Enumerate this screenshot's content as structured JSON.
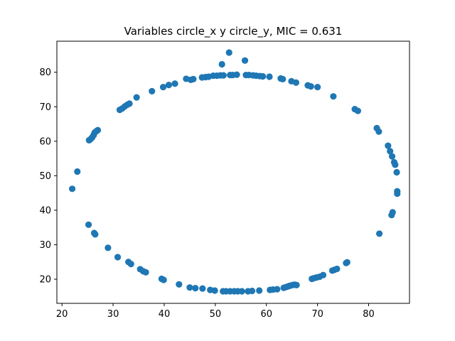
{
  "chart_data": {
    "type": "scatter",
    "title": "Variables circle_x y circle_y, MIC = 0.631",
    "xlabel": "",
    "ylabel": "",
    "xlim": [
      19,
      88
    ],
    "ylim": [
      13,
      89
    ],
    "xticks": [
      20,
      30,
      40,
      50,
      60,
      70,
      80
    ],
    "yticks": [
      20,
      30,
      40,
      50,
      60,
      70,
      80
    ],
    "grid": false,
    "marker_color": "#1f77b4",
    "series": [
      {
        "points": [
          [
            22.0,
            46.2
          ],
          [
            23.0,
            51.2
          ],
          [
            25.2,
            35.8
          ],
          [
            25.3,
            60.3
          ],
          [
            25.6,
            60.6
          ],
          [
            25.9,
            61.1
          ],
          [
            26.2,
            61.8
          ],
          [
            26.4,
            62.5
          ],
          [
            26.7,
            62.9
          ],
          [
            27.0,
            63.2
          ],
          [
            26.3,
            33.4
          ],
          [
            26.5,
            33.0
          ],
          [
            29.0,
            29.1
          ],
          [
            30.9,
            26.4
          ],
          [
            31.3,
            69.1
          ],
          [
            31.8,
            69.5
          ],
          [
            32.3,
            70.1
          ],
          [
            32.8,
            70.6
          ],
          [
            33.2,
            70.9
          ],
          [
            33.0,
            25.0
          ],
          [
            33.5,
            24.4
          ],
          [
            34.6,
            72.7
          ],
          [
            35.3,
            22.9
          ],
          [
            35.9,
            22.3
          ],
          [
            36.4,
            22.0
          ],
          [
            37.6,
            74.5
          ],
          [
            39.5,
            20.1
          ],
          [
            39.9,
            19.8
          ],
          [
            39.8,
            75.7
          ],
          [
            40.9,
            76.3
          ],
          [
            42.1,
            76.7
          ],
          [
            42.9,
            18.5
          ],
          [
            44.3,
            78.1
          ],
          [
            45.0,
            17.6
          ],
          [
            45.2,
            77.8
          ],
          [
            45.7,
            78.0
          ],
          [
            46.1,
            17.4
          ],
          [
            47.4,
            78.5
          ],
          [
            47.5,
            17.3
          ],
          [
            48.1,
            78.6
          ],
          [
            48.7,
            78.7
          ],
          [
            49.0,
            16.9
          ],
          [
            49.6,
            79.0
          ],
          [
            49.9,
            16.7
          ],
          [
            50.3,
            79.0
          ],
          [
            51.0,
            79.1
          ],
          [
            51.3,
            82.3
          ],
          [
            51.6,
            79.1
          ],
          [
            51.5,
            16.5
          ],
          [
            52.1,
            16.5
          ],
          [
            52.7,
            85.7
          ],
          [
            52.9,
            79.2
          ],
          [
            52.9,
            16.5
          ],
          [
            53.4,
            79.2
          ],
          [
            53.7,
            16.5
          ],
          [
            54.2,
            79.3
          ],
          [
            54.4,
            16.5
          ],
          [
            55.2,
            16.5
          ],
          [
            55.8,
            83.4
          ],
          [
            56.0,
            79.2
          ],
          [
            56.4,
            16.5
          ],
          [
            56.6,
            79.2
          ],
          [
            57.4,
            79.1
          ],
          [
            57.2,
            16.6
          ],
          [
            58.0,
            79.0
          ],
          [
            58.6,
            16.7
          ],
          [
            58.7,
            78.9
          ],
          [
            59.3,
            78.8
          ],
          [
            60.6,
            78.7
          ],
          [
            60.7,
            16.9
          ],
          [
            61.3,
            17.0
          ],
          [
            62.1,
            17.1
          ],
          [
            62.8,
            78.2
          ],
          [
            63.2,
            78.0
          ],
          [
            63.4,
            17.5
          ],
          [
            63.8,
            17.7
          ],
          [
            64.2,
            17.9
          ],
          [
            64.6,
            18.1
          ],
          [
            64.9,
            77.4
          ],
          [
            65.1,
            18.3
          ],
          [
            65.5,
            18.4
          ],
          [
            65.9,
            18.3
          ],
          [
            65.8,
            77.0
          ],
          [
            68.1,
            76.2
          ],
          [
            68.7,
            75.9
          ],
          [
            68.9,
            20.1
          ],
          [
            69.3,
            20.3
          ],
          [
            69.8,
            20.5
          ],
          [
            70.0,
            75.7
          ],
          [
            70.4,
            20.7
          ],
          [
            71.1,
            21.2
          ],
          [
            73.1,
            73.0
          ],
          [
            72.9,
            22.5
          ],
          [
            73.3,
            22.7
          ],
          [
            73.8,
            23.0
          ],
          [
            75.6,
            24.7
          ],
          [
            75.8,
            24.9
          ],
          [
            77.3,
            69.3
          ],
          [
            77.9,
            68.8
          ],
          [
            81.6,
            63.8
          ],
          [
            82.0,
            62.8
          ],
          [
            82.1,
            33.2
          ],
          [
            83.8,
            58.7
          ],
          [
            84.2,
            57.1
          ],
          [
            84.6,
            55.6
          ],
          [
            84.5,
            38.6
          ],
          [
            84.7,
            39.4
          ],
          [
            85.0,
            53.9
          ],
          [
            85.2,
            53.2
          ],
          [
            85.5,
            51.0
          ],
          [
            85.6,
            45.5
          ],
          [
            85.6,
            44.8
          ]
        ]
      }
    ]
  }
}
